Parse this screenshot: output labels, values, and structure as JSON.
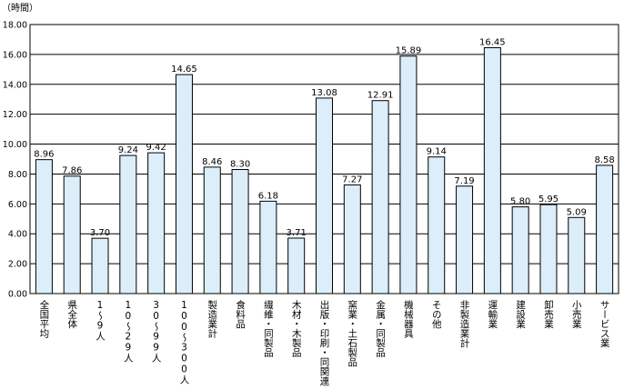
{
  "chart_data": {
    "type": "bar",
    "ylabel": "（時間）",
    "ylim": [
      0,
      18
    ],
    "y_ticks": [
      "0.00",
      "2.00",
      "4.00",
      "6.00",
      "8.00",
      "10.00",
      "12.00",
      "14.00",
      "16.00",
      "18.00"
    ],
    "grid": true,
    "legend": "none",
    "bar_color": "#dceefa",
    "bar_edge_color": "#000000",
    "categories": [
      "全国平均",
      "県全体",
      "1～9人",
      "10～29人",
      "30～99人",
      "100～300人",
      "製造業計",
      "食料品",
      "繊維・同製品",
      "木材・木製品",
      "出版・印刷・同関連",
      "窯業・土石製品",
      "金属・同製品",
      "機械器具",
      "その他",
      "非製造業計",
      "運輸業",
      "建設業",
      "卸売業",
      "小売業",
      "サービス業"
    ],
    "values": [
      8.96,
      7.86,
      3.7,
      9.24,
      9.42,
      14.65,
      8.46,
      8.3,
      6.18,
      3.71,
      13.08,
      7.27,
      12.91,
      15.89,
      9.14,
      7.19,
      16.45,
      5.8,
      5.95,
      5.09,
      8.58
    ],
    "value_labels": [
      "8.96",
      "7.86",
      "3.70",
      "9.24",
      "9.42",
      "14.65",
      "8.46",
      "8.30",
      "6.18",
      "3.71",
      "13.08",
      "7.27",
      "12.91",
      "15.89",
      "9.14",
      "7.19",
      "16.45",
      "5.80",
      "5.95",
      "5.09",
      "8.58"
    ]
  }
}
